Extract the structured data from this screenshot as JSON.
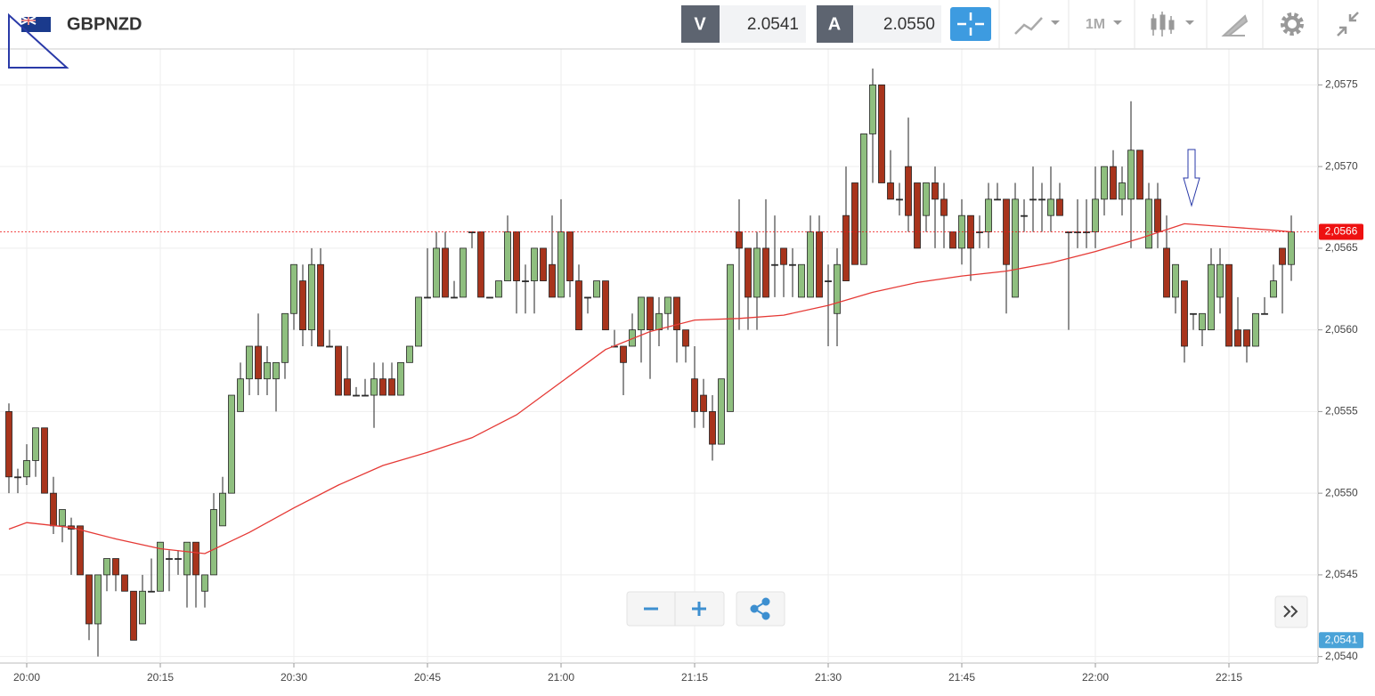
{
  "header": {
    "symbol": "GBPNZD",
    "bid_label": "V",
    "bid": "2.0541",
    "ask_label": "A",
    "ask": "2.0550",
    "timeframe": "1M"
  },
  "chart_data": {
    "type": "candlestick",
    "up_color": "#8fbf7f",
    "down_color": "#a8341c",
    "grid": true,
    "xlim": [
      "19:57",
      "22:25"
    ],
    "xticks": [
      "20:00",
      "20:15",
      "20:30",
      "20:45",
      "21:00",
      "21:15",
      "21:30",
      "21:45",
      "22:00",
      "22:15"
    ],
    "ylim": [
      2.05396,
      2.05772
    ],
    "yticks": [
      {
        "value": 2.054,
        "label": "2,0540"
      },
      {
        "value": 2.0545,
        "label": "2,0545"
      },
      {
        "value": 2.055,
        "label": "2,0550"
      },
      {
        "value": 2.0555,
        "label": "2,0555"
      },
      {
        "value": 2.056,
        "label": "2,0560"
      },
      {
        "value": 2.0565,
        "label": "2,0565"
      },
      {
        "value": 2.057,
        "label": "2,0570"
      },
      {
        "value": 2.0575,
        "label": "2,0575"
      }
    ],
    "x": [
      "19:58",
      "19:59",
      "20:00",
      "20:01",
      "20:02",
      "20:03",
      "20:04",
      "20:05",
      "20:06",
      "20:07",
      "20:08",
      "20:09",
      "20:10",
      "20:11",
      "20:12",
      "20:13",
      "20:14",
      "20:15",
      "20:16",
      "20:17",
      "20:18",
      "20:19",
      "20:20",
      "20:21",
      "20:22",
      "20:23",
      "20:24",
      "20:25",
      "20:26",
      "20:27",
      "20:28",
      "20:29",
      "20:30",
      "20:31",
      "20:32",
      "20:33",
      "20:34",
      "20:35",
      "20:36",
      "20:37",
      "20:38",
      "20:39",
      "20:40",
      "20:41",
      "20:42",
      "20:43",
      "20:44",
      "20:45",
      "20:46",
      "20:47",
      "20:48",
      "20:49",
      "20:50",
      "20:51",
      "20:52",
      "20:53",
      "20:54",
      "20:55",
      "20:56",
      "20:57",
      "20:58",
      "20:59",
      "21:00",
      "21:01",
      "21:02",
      "21:03",
      "21:04",
      "21:05",
      "21:06",
      "21:07",
      "21:08",
      "21:09",
      "21:10",
      "21:11",
      "21:12",
      "21:13",
      "21:14",
      "21:15",
      "21:16",
      "21:17",
      "21:18",
      "21:19",
      "21:20",
      "21:21",
      "21:22",
      "21:23",
      "21:24",
      "21:25",
      "21:26",
      "21:27",
      "21:28",
      "21:29",
      "21:30",
      "21:31",
      "21:32",
      "21:33",
      "21:34",
      "21:35",
      "21:36",
      "21:37",
      "21:38",
      "21:39",
      "21:40",
      "21:41",
      "21:42",
      "21:43",
      "21:44",
      "21:45",
      "21:46",
      "21:47",
      "21:48",
      "21:49",
      "21:50",
      "21:51",
      "21:52",
      "21:53",
      "21:54",
      "21:55",
      "21:56",
      "21:57",
      "21:58",
      "21:59",
      "22:00",
      "22:01",
      "22:02",
      "22:03",
      "22:04",
      "22:05",
      "22:06",
      "22:07",
      "22:08",
      "22:09",
      "22:10",
      "22:11",
      "22:12",
      "22:13",
      "22:14",
      "22:15",
      "22:16",
      "22:17",
      "22:18",
      "22:19",
      "22:20",
      "22:21",
      "22:22"
    ],
    "open": [
      2.0555,
      2.0551,
      2.0551,
      2.0552,
      2.0554,
      2.055,
      2.0548,
      2.0548,
      2.0548,
      2.0545,
      2.0542,
      2.0545,
      2.0546,
      2.0545,
      2.0544,
      2.0542,
      2.0544,
      2.0544,
      2.0546,
      2.0546,
      2.0545,
      2.0547,
      2.0544,
      2.0545,
      2.0548,
      2.055,
      2.0555,
      2.0557,
      2.0559,
      2.0557,
      2.0557,
      2.0558,
      2.0561,
      2.0563,
      2.056,
      2.0564,
      2.0559,
      2.0559,
      2.0557,
      2.0556,
      2.0556,
      2.0556,
      2.0557,
      2.0557,
      2.0556,
      2.0558,
      2.0559,
      2.0562,
      2.0562,
      2.0565,
      2.0562,
      2.0562,
      2.0566,
      2.0566,
      2.0562,
      2.0562,
      2.0563,
      2.0566,
      2.0563,
      2.0563,
      2.0565,
      2.0564,
      2.0562,
      2.0566,
      2.0563,
      2.0562,
      2.0562,
      2.0563,
      2.0559,
      2.0559,
      2.0559,
      2.056,
      2.0562,
      2.056,
      2.0561,
      2.0562,
      2.056,
      2.0557,
      2.0556,
      2.0555,
      2.0553,
      2.0555,
      2.0566,
      2.0565,
      2.0562,
      2.0565,
      2.0564,
      2.0565,
      2.0564,
      2.0562,
      2.0562,
      2.0566,
      2.0563,
      2.0561,
      2.0567,
      2.0569,
      2.0564,
      2.0572,
      2.0575,
      2.0569,
      2.0568,
      2.057,
      2.0569,
      2.0567,
      2.0569,
      2.0568,
      2.0566,
      2.0565,
      2.0567,
      2.0566,
      2.0566,
      2.0568,
      2.0568,
      2.0562,
      2.0567,
      2.0568,
      2.0568,
      2.0567,
      2.0568,
      2.0566,
      2.0566,
      2.0566,
      2.0566,
      2.0568,
      2.057,
      2.0568,
      2.0568,
      2.0571,
      2.0565,
      2.0568,
      2.0565,
      2.0562,
      2.0563,
      2.0561,
      2.056,
      2.056,
      2.0562,
      2.0564,
      2.056,
      2.056,
      2.0559,
      2.0561,
      2.0562,
      2.0565,
      2.0564
    ],
    "high": [
      2.05555,
      2.05515,
      2.0553,
      2.0554,
      2.0554,
      2.0551,
      2.0549,
      2.05485,
      2.0548,
      2.0545,
      2.0545,
      2.0546,
      2.0546,
      2.0545,
      2.0544,
      2.0545,
      2.0546,
      2.0547,
      2.05465,
      2.05465,
      2.0547,
      2.0547,
      2.0545,
      2.055,
      2.0551,
      2.0556,
      2.0558,
      2.0559,
      2.0561,
      2.0559,
      2.0558,
      2.0561,
      2.0564,
      2.0564,
      2.0565,
      2.0565,
      2.056,
      2.0559,
      2.0559,
      2.05565,
      2.0557,
      2.0558,
      2.0558,
      2.0558,
      2.0558,
      2.0559,
      2.0562,
      2.0565,
      2.0566,
      2.0566,
      2.0563,
      2.0565,
      2.0566,
      2.0566,
      2.0562,
      2.0563,
      2.0567,
      2.0566,
      2.0564,
      2.0565,
      2.0565,
      2.0567,
      2.0568,
      2.0566,
      2.0564,
      2.0562,
      2.0563,
      2.0563,
      2.056,
      2.0559,
      2.0561,
      2.0562,
      2.0562,
      2.0562,
      2.0562,
      2.0562,
      2.056,
      2.0559,
      2.0557,
      2.0556,
      2.0557,
      2.0564,
      2.0568,
      2.0565,
      2.0566,
      2.0568,
      2.0567,
      2.0565,
      2.0565,
      2.0564,
      2.0567,
      2.0567,
      2.0564,
      2.0565,
      2.057,
      2.0569,
      2.0572,
      2.0576,
      2.0575,
      2.0571,
      2.0569,
      2.0573,
      2.0569,
      2.0569,
      2.057,
      2.0569,
      2.0566,
      2.0568,
      2.0567,
      2.0567,
      2.0569,
      2.0569,
      2.0568,
      2.0569,
      2.0568,
      2.057,
      2.0569,
      2.057,
      2.0569,
      2.0566,
      2.0568,
      2.0568,
      2.057,
      2.057,
      2.0571,
      2.057,
      2.0574,
      2.0571,
      2.0569,
      2.0569,
      2.0567,
      2.0564,
      2.0563,
      2.0561,
      2.0561,
      2.0565,
      2.0565,
      2.0564,
      2.0562,
      2.056,
      2.0561,
      2.0562,
      2.0564,
      2.0565,
      2.0567
    ],
    "low": [
      2.055,
      2.055,
      2.05505,
      2.0551,
      2.055,
      2.05475,
      2.0547,
      2.0545,
      2.0545,
      2.0541,
      2.054,
      2.0544,
      2.0544,
      2.0544,
      2.0541,
      2.0542,
      2.0544,
      2.0544,
      2.0544,
      2.0545,
      2.0543,
      2.0543,
      2.0543,
      2.0545,
      2.0548,
      2.055,
      2.0555,
      2.0556,
      2.0556,
      2.0556,
      2.0555,
      2.0557,
      2.056,
      2.0559,
      2.0559,
      2.0559,
      2.0559,
      2.0556,
      2.0556,
      2.0556,
      2.0556,
      2.0554,
      2.0556,
      2.0556,
      2.0556,
      2.0558,
      2.0559,
      2.0562,
      2.0562,
      2.0562,
      2.0562,
      2.0562,
      2.0565,
      2.0562,
      2.0562,
      2.0562,
      2.0563,
      2.0561,
      2.0561,
      2.0561,
      2.0563,
      2.0562,
      2.0562,
      2.0562,
      2.056,
      2.0561,
      2.0562,
      2.056,
      2.0559,
      2.0556,
      2.0559,
      2.0558,
      2.0557,
      2.0559,
      2.056,
      2.0558,
      2.0558,
      2.0554,
      2.0554,
      2.0552,
      2.0553,
      2.0555,
      2.056,
      2.056,
      2.056,
      2.0562,
      2.0562,
      2.0562,
      2.0562,
      2.0562,
      2.0562,
      2.0562,
      2.0559,
      2.0559,
      2.0563,
      2.0564,
      2.0564,
      2.0569,
      2.0569,
      2.0568,
      2.0567,
      2.0566,
      2.0565,
      2.0566,
      2.0565,
      2.0565,
      2.0565,
      2.0564,
      2.0563,
      2.0565,
      2.0565,
      2.0568,
      2.0561,
      2.0562,
      2.0566,
      2.0566,
      2.0566,
      2.0566,
      2.0567,
      2.056,
      2.0565,
      2.0565,
      2.0565,
      2.0567,
      2.0568,
      2.0567,
      2.0565,
      2.0568,
      2.0565,
      2.0565,
      2.0562,
      2.0561,
      2.0558,
      2.056,
      2.0559,
      2.056,
      2.0561,
      2.0559,
      2.0559,
      2.0558,
      2.0559,
      2.0561,
      2.0562,
      2.0561,
      2.0563
    ],
    "close": [
      2.0551,
      2.0551,
      2.0552,
      2.0554,
      2.055,
      2.0548,
      2.0549,
      2.05478,
      2.0545,
      2.0542,
      2.0545,
      2.0546,
      2.0545,
      2.0544,
      2.0541,
      2.0544,
      2.0544,
      2.0547,
      2.0546,
      2.0546,
      2.0547,
      2.0545,
      2.0545,
      2.0549,
      2.055,
      2.0556,
      2.0557,
      2.0559,
      2.0557,
      2.0558,
      2.0558,
      2.0561,
      2.0564,
      2.056,
      2.0564,
      2.0559,
      2.0559,
      2.0556,
      2.0556,
      2.0556,
      2.0556,
      2.0557,
      2.0556,
      2.0556,
      2.0558,
      2.0559,
      2.0562,
      2.0562,
      2.0565,
      2.0562,
      2.0562,
      2.0565,
      2.0566,
      2.0562,
      2.0562,
      2.0563,
      2.0566,
      2.0563,
      2.0563,
      2.0565,
      2.0563,
      2.0562,
      2.0566,
      2.0563,
      2.056,
      2.0562,
      2.0563,
      2.056,
      2.0559,
      2.0558,
      2.056,
      2.0562,
      2.056,
      2.0561,
      2.0562,
      2.056,
      2.0559,
      2.0555,
      2.0555,
      2.0553,
      2.0557,
      2.0564,
      2.0565,
      2.0562,
      2.0565,
      2.0562,
      2.0564,
      2.0564,
      2.0564,
      2.0564,
      2.0566,
      2.0562,
      2.0563,
      2.0564,
      2.0563,
      2.0564,
      2.0572,
      2.0575,
      2.0569,
      2.0568,
      2.0568,
      2.0567,
      2.0565,
      2.0569,
      2.0568,
      2.0567,
      2.0565,
      2.0567,
      2.0565,
      2.0566,
      2.0568,
      2.0568,
      2.0564,
      2.0568,
      2.0567,
      2.0568,
      2.0568,
      2.0568,
      2.0567,
      2.0566,
      2.0566,
      2.0566,
      2.0568,
      2.057,
      2.0568,
      2.0569,
      2.0571,
      2.0568,
      2.0568,
      2.0566,
      2.0562,
      2.0564,
      2.0559,
      2.0561,
      2.0561,
      2.0564,
      2.0564,
      2.0559,
      2.0559,
      2.0559,
      2.0561,
      2.0561,
      2.0563,
      2.0564,
      2.0566
    ],
    "moving_average": {
      "color": "#e53935",
      "x": [
        "19:58",
        "20:00",
        "20:05",
        "20:10",
        "20:15",
        "20:20",
        "20:25",
        "20:30",
        "20:35",
        "20:40",
        "20:45",
        "20:50",
        "20:55",
        "21:00",
        "21:05",
        "21:10",
        "21:15",
        "21:20",
        "21:25",
        "21:30",
        "21:35",
        "21:40",
        "21:45",
        "21:50",
        "21:55",
        "22:00",
        "22:05",
        "22:10",
        "22:15",
        "22:20",
        "22:22"
      ],
      "values": [
        2.05478,
        2.05482,
        2.05479,
        2.05472,
        2.05466,
        2.05463,
        2.05476,
        2.05491,
        2.05505,
        2.05517,
        2.05525,
        2.05534,
        2.05548,
        2.05568,
        2.05588,
        2.05599,
        2.05606,
        2.05607,
        2.05609,
        2.05615,
        2.05623,
        2.05629,
        2.05633,
        2.05636,
        2.05641,
        2.05648,
        2.05656,
        2.05665,
        2.05663,
        2.05661,
        2.0566
      ]
    },
    "price_tags": [
      {
        "value": 2.0566,
        "label": "2,0566",
        "color": "#ee1111"
      },
      {
        "value": 2.0541,
        "label": "2,0541",
        "color": "#4aa3d8"
      }
    ]
  }
}
